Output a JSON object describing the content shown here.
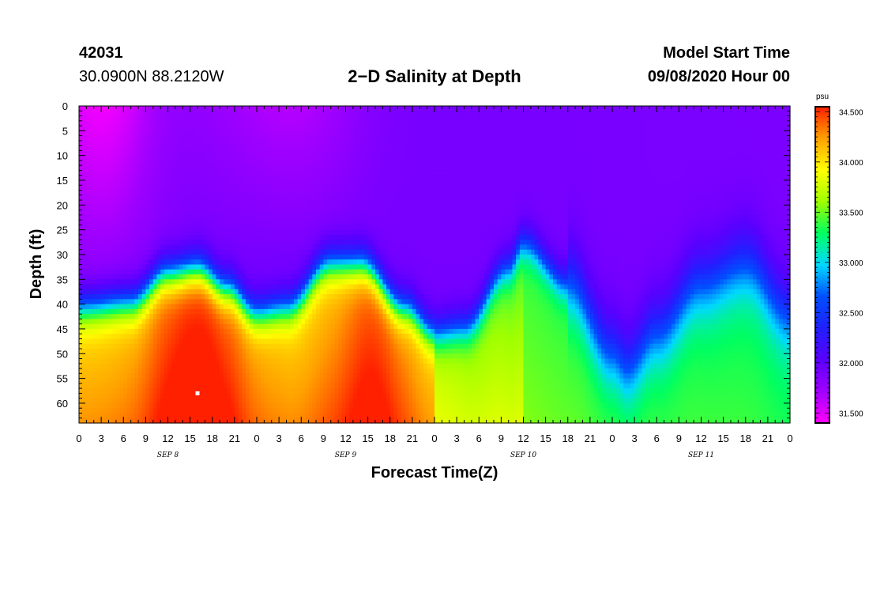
{
  "header": {
    "station_id": "42031",
    "location": "30.0900N 88.2120W",
    "title": "2−D Salinity at Depth",
    "model_start_label": "Model Start Time",
    "model_start_value": "09/08/2020 Hour 00"
  },
  "chart_data": {
    "type": "heatmap",
    "title": "2−D Salinity at Depth",
    "xlabel": "Forecast Time(Z)",
    "ylabel": "Depth (ft)",
    "units": "psu",
    "x_range_hours": [
      0,
      96
    ],
    "y_range_ft": [
      0,
      64
    ],
    "x_tick_labels": [
      "0",
      "3",
      "6",
      "9",
      "12",
      "15",
      "18",
      "21",
      "0",
      "3",
      "6",
      "9",
      "12",
      "15",
      "18",
      "21",
      "0",
      "3",
      "6",
      "9",
      "12",
      "15",
      "18",
      "21",
      "0",
      "3",
      "6",
      "9",
      "12",
      "15",
      "18",
      "21",
      "0"
    ],
    "y_tick_labels": [
      "0",
      "5",
      "10",
      "15",
      "20",
      "25",
      "30",
      "35",
      "40",
      "45",
      "50",
      "55",
      "60"
    ],
    "day_labels": [
      "SEP 8",
      "SEP 9",
      "SEP 10",
      "SEP 11"
    ],
    "colorbar": {
      "label": "psu",
      "min": 31.4,
      "max": 34.55,
      "tick_labels": [
        "34.500",
        "34.000",
        "33.500",
        "33.000",
        "32.500",
        "32.000",
        "31.500"
      ],
      "colors": [
        "#ff00ff",
        "#a000ff",
        "#5a00ff",
        "#2020ff",
        "#0050ff",
        "#00d8ff",
        "#00ff60",
        "#a0ff00",
        "#ffff00",
        "#ffa000",
        "#ff2000"
      ]
    },
    "halocline_depth_ft": [
      {
        "hour": 0,
        "depth": 41
      },
      {
        "hour": 7,
        "depth": 40
      },
      {
        "hour": 12,
        "depth": 34
      },
      {
        "hour": 16,
        "depth": 33
      },
      {
        "hour": 20,
        "depth": 37
      },
      {
        "hour": 24,
        "depth": 42
      },
      {
        "hour": 28,
        "depth": 41
      },
      {
        "hour": 34,
        "depth": 32
      },
      {
        "hour": 38,
        "depth": 32
      },
      {
        "hour": 44,
        "depth": 41
      },
      {
        "hour": 48,
        "depth": 46
      },
      {
        "hour": 52,
        "depth": 45
      },
      {
        "hour": 58,
        "depth": 33
      },
      {
        "hour": 60,
        "depth": 28
      },
      {
        "hour": 66,
        "depth": 36
      },
      {
        "hour": 72,
        "depth": 50
      },
      {
        "hour": 74,
        "depth": 53
      },
      {
        "hour": 78,
        "depth": 46
      },
      {
        "hour": 84,
        "depth": 36
      },
      {
        "hour": 90,
        "depth": 32
      },
      {
        "hour": 96,
        "depth": 42
      }
    ],
    "features": [
      {
        "label": "max salinity core",
        "hour": 16,
        "depth": 58,
        "value": 34.5
      },
      {
        "label": "max salinity core",
        "hour": 40,
        "depth": 59,
        "value": 34.4
      },
      {
        "label": "surface minimum",
        "hour": 3,
        "depth": 5,
        "value": 31.45
      }
    ]
  }
}
